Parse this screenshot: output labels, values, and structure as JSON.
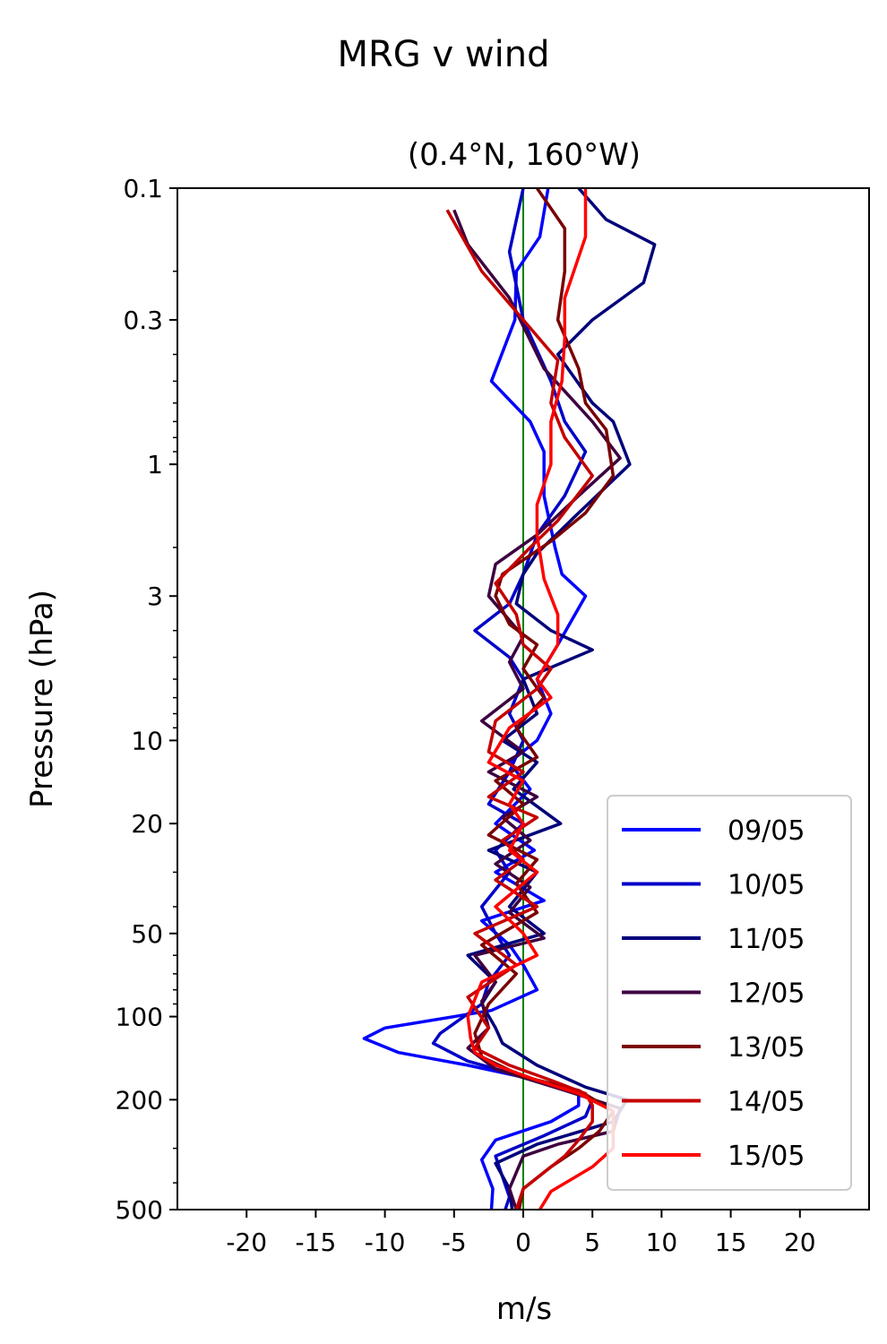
{
  "suptitle": "MRG v wind",
  "chart_data": {
    "type": "line",
    "title": "(0.4°N, 160°W)",
    "xlabel": "m/s",
    "ylabel": "Pressure (hPa)",
    "xlim": [
      -25,
      25
    ],
    "ylim": [
      500,
      0.1
    ],
    "yscale": "log",
    "xticks": [
      -20,
      -15,
      -10,
      -5,
      0,
      5,
      10,
      15,
      20
    ],
    "xtick_labels": [
      "-20",
      "-15",
      "-10",
      "-5",
      "0",
      "5",
      "10",
      "15",
      "20"
    ],
    "yticks": [
      0.1,
      0.3,
      1,
      3,
      10,
      20,
      50,
      100,
      200,
      500
    ],
    "ytick_labels": [
      "0.1",
      "0.3",
      "1",
      "3",
      "10",
      "20",
      "50",
      "100",
      "200",
      "500"
    ],
    "zero_line_color": "#008000",
    "legend_position": "lower right",
    "series": [
      {
        "name": "09/05",
        "color": "#0000ff",
        "points": [
          [
            1.8,
            0.1
          ],
          [
            1.2,
            0.15
          ],
          [
            -0.5,
            0.2
          ],
          [
            -0.6,
            0.3
          ],
          [
            -2.3,
            0.5
          ],
          [
            0.5,
            0.7
          ],
          [
            1.5,
            0.9
          ],
          [
            1.5,
            1.3
          ],
          [
            2.3,
            2.0
          ],
          [
            2.8,
            2.5
          ],
          [
            4.5,
            3.0
          ],
          [
            2.5,
            4.5
          ],
          [
            1,
            6
          ],
          [
            2,
            8
          ],
          [
            1,
            10
          ],
          [
            -1,
            12
          ],
          [
            0.5,
            15
          ],
          [
            -2,
            20
          ],
          [
            0.8,
            25
          ],
          [
            -2,
            30
          ],
          [
            1.5,
            38
          ],
          [
            -3,
            45
          ],
          [
            -1,
            55
          ],
          [
            0,
            65
          ],
          [
            1,
            80
          ],
          [
            -2.3,
            95
          ],
          [
            -10,
            110
          ],
          [
            -11.5,
            120
          ],
          [
            -9,
            135
          ],
          [
            -4,
            150
          ],
          [
            1,
            170
          ],
          [
            4,
            190
          ],
          [
            4,
            210
          ],
          [
            2,
            240
          ],
          [
            -2,
            280
          ],
          [
            -3,
            330
          ],
          [
            -2.2,
            420
          ],
          [
            -2.3,
            500
          ]
        ]
      },
      {
        "name": "10/05",
        "color": "#0000c8",
        "points": [
          [
            0,
            0.1
          ],
          [
            -1,
            0.17
          ],
          [
            0,
            0.3
          ],
          [
            2,
            0.5
          ],
          [
            3,
            0.7
          ],
          [
            4.5,
            0.9
          ],
          [
            3,
            1.3
          ],
          [
            1,
            1.8
          ],
          [
            0,
            2.5
          ],
          [
            -1,
            3.2
          ],
          [
            -3.5,
            4
          ],
          [
            -1,
            5
          ],
          [
            0,
            6
          ],
          [
            -1,
            8
          ],
          [
            0,
            10
          ],
          [
            -1,
            13
          ],
          [
            -2.5,
            17
          ],
          [
            0,
            20
          ],
          [
            -2,
            25
          ],
          [
            -1,
            30
          ],
          [
            -3,
            40
          ],
          [
            -2,
            50
          ],
          [
            -1,
            60
          ],
          [
            -2.5,
            75
          ],
          [
            -3,
            90
          ],
          [
            -6,
            115
          ],
          [
            -6.5,
            125
          ],
          [
            -4,
            145
          ],
          [
            0,
            165
          ],
          [
            3,
            180
          ],
          [
            5,
            200
          ],
          [
            4.5,
            230
          ],
          [
            1.5,
            270
          ],
          [
            -2,
            320
          ],
          [
            -1.5,
            380
          ],
          [
            -1,
            450
          ],
          [
            -1.3,
            500
          ]
        ]
      },
      {
        "name": "11/05",
        "color": "#00007a",
        "points": [
          [
            4,
            0.1
          ],
          [
            6,
            0.13
          ],
          [
            9.5,
            0.16
          ],
          [
            8.7,
            0.22
          ],
          [
            5,
            0.3
          ],
          [
            2.5,
            0.4
          ],
          [
            5,
            0.6
          ],
          [
            6.5,
            0.7
          ],
          [
            7.7,
            1.0
          ],
          [
            4,
            1.5
          ],
          [
            1,
            2.1
          ],
          [
            0,
            2.5
          ],
          [
            -0.5,
            3.2
          ],
          [
            2,
            4
          ],
          [
            5,
            4.7
          ],
          [
            0,
            6
          ],
          [
            1,
            8
          ],
          [
            -1.5,
            10
          ],
          [
            1,
            12
          ],
          [
            -0.7,
            15
          ],
          [
            2.7,
            20
          ],
          [
            -2.5,
            25
          ],
          [
            1,
            30
          ],
          [
            -1,
            40
          ],
          [
            1.5,
            50
          ],
          [
            -4,
            60
          ],
          [
            -2,
            75
          ],
          [
            -3,
            90
          ],
          [
            -2,
            110
          ],
          [
            -1.5,
            125
          ],
          [
            1,
            150
          ],
          [
            4.5,
            180
          ],
          [
            7.5,
            200
          ],
          [
            6.5,
            240
          ],
          [
            1,
            290
          ],
          [
            -2,
            340
          ],
          [
            -1,
            420
          ],
          [
            -0.8,
            500
          ]
        ]
      },
      {
        "name": "12/05",
        "color": "#3d0040",
        "points": [
          [
            -5,
            0.12
          ],
          [
            -4,
            0.16
          ],
          [
            -1,
            0.25
          ],
          [
            1.5,
            0.45
          ],
          [
            5,
            0.7
          ],
          [
            7,
            0.95
          ],
          [
            4,
            1.3
          ],
          [
            1,
            1.8
          ],
          [
            -2,
            2.3
          ],
          [
            -2.5,
            3.0
          ],
          [
            0,
            4.2
          ],
          [
            -1,
            5.2
          ],
          [
            0,
            6.5
          ],
          [
            -3,
            8.5
          ],
          [
            0,
            11
          ],
          [
            -2.5,
            13
          ],
          [
            1,
            16
          ],
          [
            -1.5,
            19
          ],
          [
            0.5,
            23
          ],
          [
            -2,
            28
          ],
          [
            0.5,
            34
          ],
          [
            -1,
            42
          ],
          [
            1.5,
            52
          ],
          [
            -3.5,
            60
          ],
          [
            -2,
            75
          ],
          [
            -3,
            88
          ],
          [
            -2.5,
            110
          ],
          [
            -4,
            130
          ],
          [
            -2,
            155
          ],
          [
            3,
            185
          ],
          [
            7,
            215
          ],
          [
            6.5,
            260
          ],
          [
            2.5,
            290
          ],
          [
            0,
            320
          ],
          [
            -1,
            420
          ],
          [
            -0.5,
            500
          ]
        ]
      },
      {
        "name": "13/05",
        "color": "#7a0000",
        "points": [
          [
            1,
            0.1
          ],
          [
            3,
            0.14
          ],
          [
            3,
            0.2
          ],
          [
            2.5,
            0.3
          ],
          [
            4,
            0.45
          ],
          [
            4.5,
            0.6
          ],
          [
            6,
            0.75
          ],
          [
            6.5,
            1.1
          ],
          [
            4.5,
            1.5
          ],
          [
            2,
            1.9
          ],
          [
            -1.5,
            2.5
          ],
          [
            -2,
            3.0
          ],
          [
            -1,
            3.8
          ],
          [
            1,
            4.5
          ],
          [
            0,
            5.5
          ],
          [
            1.5,
            7
          ],
          [
            -0.5,
            9
          ],
          [
            1,
            11.5
          ],
          [
            -2,
            14
          ],
          [
            0,
            17
          ],
          [
            -2.5,
            22
          ],
          [
            1,
            27
          ],
          [
            -0.5,
            33
          ],
          [
            1,
            42
          ],
          [
            -3,
            55
          ],
          [
            -0.5,
            70
          ],
          [
            -2.5,
            90
          ],
          [
            -3.5,
            115
          ],
          [
            -3,
            140
          ],
          [
            0,
            165
          ],
          [
            4,
            185
          ],
          [
            6.5,
            220
          ],
          [
            5.5,
            260
          ],
          [
            4,
            300
          ],
          [
            2,
            350
          ],
          [
            0,
            420
          ],
          [
            -0.3,
            500
          ]
        ]
      },
      {
        "name": "14/05",
        "color": "#c40000",
        "points": [
          [
            -5.5,
            0.12
          ],
          [
            -3,
            0.2
          ],
          [
            0,
            0.3
          ],
          [
            2.5,
            0.42
          ],
          [
            2,
            0.6
          ],
          [
            3,
            0.8
          ],
          [
            5,
            1.1
          ],
          [
            2.5,
            1.6
          ],
          [
            0.5,
            2.0
          ],
          [
            -2,
            2.7
          ],
          [
            -0.5,
            3.5
          ],
          [
            0,
            4.5
          ],
          [
            2,
            5.5
          ],
          [
            1,
            6.5
          ],
          [
            -2,
            8.5
          ],
          [
            -2.5,
            11
          ],
          [
            0,
            13
          ],
          [
            -2.5,
            16
          ],
          [
            1,
            19
          ],
          [
            -1.5,
            23
          ],
          [
            0,
            27
          ],
          [
            -2,
            32
          ],
          [
            1,
            40
          ],
          [
            -3.5,
            50
          ],
          [
            -0.5,
            65
          ],
          [
            -4,
            85
          ],
          [
            -2.5,
            110
          ],
          [
            -3.5,
            130
          ],
          [
            -1,
            150
          ],
          [
            2,
            170
          ],
          [
            4.5,
            190
          ],
          [
            5,
            210
          ],
          [
            5,
            240
          ],
          [
            4,
            280
          ],
          [
            3,
            320
          ],
          [
            0,
            420
          ],
          [
            -0.5,
            500
          ]
        ]
      },
      {
        "name": "15/05",
        "color": "#ff0000",
        "points": [
          [
            4.5,
            0.1
          ],
          [
            4.5,
            0.15
          ],
          [
            3,
            0.25
          ],
          [
            3,
            0.35
          ],
          [
            2.8,
            0.5
          ],
          [
            2,
            0.7
          ],
          [
            2,
            1.0
          ],
          [
            1,
            1.4
          ],
          [
            1,
            1.8
          ],
          [
            1.5,
            2.6
          ],
          [
            2.5,
            3.5
          ],
          [
            2.5,
            4.5
          ],
          [
            1,
            6
          ],
          [
            2,
            7
          ],
          [
            -1,
            9
          ],
          [
            -2.5,
            12
          ],
          [
            0,
            14
          ],
          [
            -1,
            17
          ],
          [
            0,
            20
          ],
          [
            -1,
            25
          ],
          [
            1,
            30
          ],
          [
            -2,
            40
          ],
          [
            0,
            50
          ],
          [
            1,
            60
          ],
          [
            -3,
            75
          ],
          [
            -4,
            100
          ],
          [
            -3.8,
            120
          ],
          [
            -3.5,
            135
          ],
          [
            -2,
            150
          ],
          [
            1,
            170
          ],
          [
            4,
            190
          ],
          [
            6.5,
            220
          ],
          [
            6.5,
            250
          ],
          [
            6.5,
            300
          ],
          [
            5,
            350
          ],
          [
            2,
            430
          ],
          [
            1.2,
            500
          ]
        ]
      }
    ]
  }
}
